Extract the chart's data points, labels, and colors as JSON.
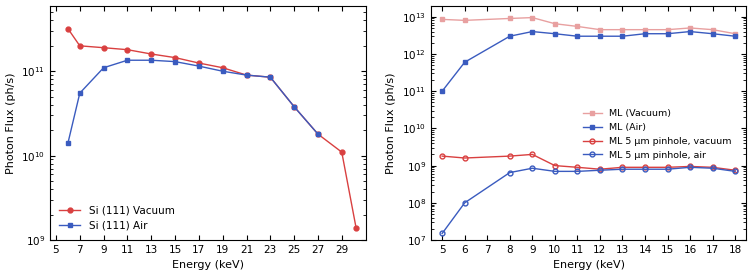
{
  "plot1": {
    "xlabel": "Energy (keV)",
    "ylabel": "Photon Flux (ph/s)",
    "ylim": [
      1000000000.0,
      600000000000.0
    ],
    "xlim": [
      4.5,
      31
    ],
    "xticks": [
      5,
      7,
      9,
      11,
      13,
      15,
      17,
      19,
      21,
      23,
      25,
      27,
      29
    ],
    "series": [
      {
        "label": "Si (111) Vacuum",
        "color": "#d94040",
        "marker": "o",
        "markerfacecolor": "#d94040",
        "x": [
          6,
          7,
          9,
          11,
          13,
          15,
          17,
          19,
          21,
          23,
          25,
          27,
          29,
          30.2
        ],
        "y": [
          320000000000.0,
          200000000000.0,
          190000000000.0,
          180000000000.0,
          160000000000.0,
          145000000000.0,
          125000000000.0,
          110000000000.0,
          90000000000.0,
          85000000000.0,
          38000000000.0,
          18000000000.0,
          11000000000.0,
          1400000000.0
        ]
      },
      {
        "label": "Si (111) Air",
        "color": "#3a5bbf",
        "marker": "s",
        "markerfacecolor": "#3a5bbf",
        "x": [
          6,
          7,
          9,
          11,
          13,
          15,
          17,
          19,
          21,
          23,
          25,
          27
        ],
        "y": [
          14000000000.0,
          55000000000.0,
          110000000000.0,
          135000000000.0,
          135000000000.0,
          130000000000.0,
          115000000000.0,
          100000000000.0,
          90000000000.0,
          85000000000.0,
          38000000000.0,
          18000000000.0
        ]
      }
    ]
  },
  "plot2": {
    "xlabel": "Energy (keV)",
    "ylabel": "Photon Flux (ph/s)",
    "ylim": [
      10000000.0,
      20000000000000.0
    ],
    "xlim": [
      4.5,
      18.5
    ],
    "xticks": [
      5,
      6,
      7,
      8,
      9,
      10,
      11,
      12,
      13,
      14,
      15,
      16,
      17,
      18
    ],
    "series": [
      {
        "label": "ML (Vacuum)",
        "color": "#e8a0a0",
        "marker": "s",
        "markerfacecolor": "#e8a0a0",
        "x": [
          5,
          6,
          8,
          9,
          10,
          11,
          12,
          13,
          14,
          15,
          16,
          17,
          18
        ],
        "y": [
          8500000000000.0,
          8000000000000.0,
          9000000000000.0,
          9500000000000.0,
          6500000000000.0,
          5500000000000.0,
          4500000000000.0,
          4500000000000.0,
          4500000000000.0,
          4500000000000.0,
          5000000000000.0,
          4500000000000.0,
          3500000000000.0
        ]
      },
      {
        "label": "ML (Air)",
        "color": "#3a5bbf",
        "marker": "s",
        "markerfacecolor": "#3a5bbf",
        "x": [
          5,
          6,
          8,
          9,
          10,
          11,
          12,
          13,
          14,
          15,
          16,
          17,
          18
        ],
        "y": [
          100000000000.0,
          600000000000.0,
          3000000000000.0,
          4000000000000.0,
          3500000000000.0,
          3000000000000.0,
          3000000000000.0,
          3000000000000.0,
          3500000000000.0,
          3500000000000.0,
          4000000000000.0,
          3500000000000.0,
          3000000000000.0
        ]
      },
      {
        "label": "ML 5 μm pinhole, vacuum",
        "color": "#d94040",
        "marker": "o",
        "markerfacecolor": "none",
        "x": [
          5,
          6,
          8,
          9,
          10,
          11,
          12,
          13,
          14,
          15,
          16,
          17,
          18
        ],
        "y": [
          1800000000.0,
          1600000000.0,
          1800000000.0,
          2000000000.0,
          1000000000.0,
          900000000.0,
          800000000.0,
          900000000.0,
          900000000.0,
          900000000.0,
          950000000.0,
          900000000.0,
          750000000.0
        ]
      },
      {
        "label": "ML 5 μm pinhole, air",
        "color": "#3a5bbf",
        "marker": "o",
        "markerfacecolor": "none",
        "x": [
          5,
          6,
          8,
          9,
          10,
          11,
          12,
          13,
          14,
          15,
          16,
          17,
          18
        ],
        "y": [
          15000000.0,
          100000000.0,
          650000000.0,
          850000000.0,
          700000000.0,
          700000000.0,
          750000000.0,
          800000000.0,
          800000000.0,
          800000000.0,
          900000000.0,
          850000000.0,
          700000000.0
        ]
      }
    ]
  },
  "figsize": [
    7.52,
    2.76
  ],
  "dpi": 100
}
